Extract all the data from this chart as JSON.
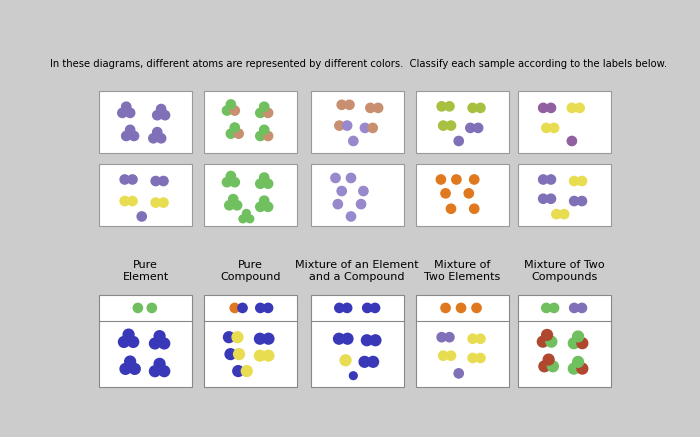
{
  "title": "In these diagrams, different atoms are represented by different colors.  Classify each sample according to the labels below.",
  "bg_color": "#cccccc",
  "labels": [
    "Pure\nElement",
    "Pure\nCompound",
    "Mixture of an Element\nand a Compound",
    "Mixture of\nTwo Elements",
    "Mixture of Two\nCompounds"
  ],
  "pu": "#8070b8",
  "ye": "#e8dc50",
  "gr": "#70c060",
  "sa": "#c89070",
  "bl": "#3838b8",
  "or": "#e07820",
  "lv": "#9888cc",
  "yg": "#a8c040",
  "purple2": "#9060a0",
  "rb": "#b04830",
  "dg": "#408840"
}
